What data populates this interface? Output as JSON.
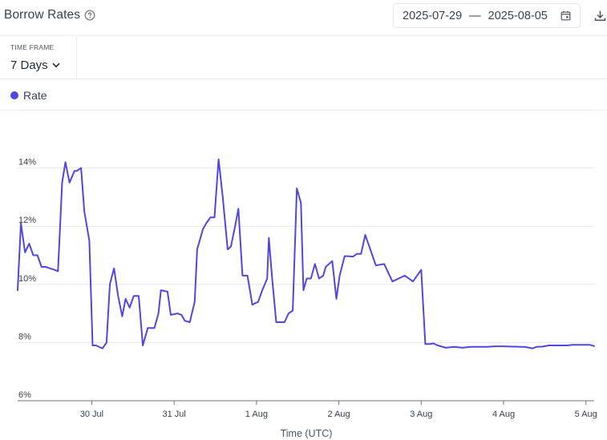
{
  "header": {
    "title": "Borrow Rates",
    "date_start": "2025-07-29",
    "date_separator": "—",
    "date_end": "2025-08-05"
  },
  "icons": {
    "help": "help-circle-icon",
    "calendar": "calendar-icon",
    "download": "download-icon",
    "chevron": "chevron-down-icon"
  },
  "timeframe": {
    "label": "TIME FRAME",
    "value": "7 Days"
  },
  "legend": {
    "label": "Rate",
    "color": "#5046e4"
  },
  "chart_data": {
    "type": "line",
    "xlabel": "Time (UTC)",
    "ylabel": "",
    "ylim": [
      6,
      16
    ],
    "xlim": [
      0,
      7
    ],
    "y_ticks": [
      6,
      8,
      10,
      12,
      14
    ],
    "y_tick_labels": [
      "6%",
      "8%",
      "10%",
      "12%",
      "14%"
    ],
    "x_ticks": [
      0.9,
      1.9,
      2.9,
      3.9,
      4.9,
      5.9,
      6.9
    ],
    "x_tick_labels": [
      "30 Jul",
      "31 Jul",
      "1 Aug",
      "2 Aug",
      "3 Aug",
      "4 Aug",
      "5 Aug"
    ],
    "grid": true,
    "legend_position": "top-left",
    "series": [
      {
        "name": "Rate",
        "color": "#5046e4",
        "x": [
          0,
          0.04,
          0.09,
          0.14,
          0.19,
          0.24,
          0.29,
          0.34,
          0.39,
          0.45,
          0.49,
          0.54,
          0.58,
          0.63,
          0.69,
          0.72,
          0.77,
          0.81,
          0.87,
          0.91,
          0.95,
          1.03,
          1.08,
          1.12,
          1.17,
          1.22,
          1.27,
          1.31,
          1.36,
          1.41,
          1.47,
          1.52,
          1.58,
          1.62,
          1.66,
          1.71,
          1.74,
          1.82,
          1.86,
          1.94,
          1.99,
          2.03,
          2.09,
          2.15,
          2.18,
          2.25,
          2.29,
          2.34,
          2.39,
          2.44,
          2.49,
          2.55,
          2.59,
          2.64,
          2.68,
          2.73,
          2.79,
          2.85,
          2.92,
          2.97,
          3.03,
          3.05,
          3.09,
          3.14,
          3.19,
          3.24,
          3.29,
          3.34,
          3.39,
          3.44,
          3.47,
          3.51,
          3.56,
          3.61,
          3.66,
          3.71,
          3.74,
          3.82,
          3.87,
          3.91,
          3.97,
          4.01,
          4.07,
          4.12,
          4.17,
          4.22,
          4.35,
          4.45,
          4.55,
          4.7,
          4.8,
          4.9,
          4.95,
          5.0,
          5.05,
          5.1,
          5.2,
          5.3,
          5.4,
          5.5,
          5.6,
          5.65,
          5.7,
          5.8,
          5.9,
          6.0,
          6.05,
          6.1,
          6.15,
          6.2,
          6.25,
          6.3,
          6.37,
          6.45,
          6.52,
          6.6,
          6.67,
          6.74,
          6.81,
          6.88,
          6.95,
          7.0
        ],
        "y": [
          9.8,
          12.1,
          11.1,
          11.4,
          11.0,
          11.0,
          10.6,
          10.6,
          10.55,
          10.5,
          10.45,
          13.5,
          14.2,
          13.5,
          13.9,
          13.9,
          14.0,
          12.5,
          11.5,
          7.9,
          7.9,
          7.8,
          8.0,
          10.0,
          10.55,
          9.6,
          8.9,
          9.5,
          9.2,
          9.6,
          9.6,
          7.9,
          8.5,
          8.5,
          8.5,
          9.0,
          9.8,
          9.75,
          8.95,
          9.0,
          8.95,
          8.75,
          8.7,
          9.4,
          11.2,
          11.9,
          12.1,
          12.3,
          12.3,
          14.3,
          13.0,
          11.2,
          11.3,
          12.0,
          12.6,
          10.3,
          10.3,
          9.3,
          9.4,
          9.8,
          10.2,
          11.6,
          10.2,
          8.7,
          8.7,
          8.7,
          9.0,
          9.1,
          13.3,
          12.8,
          9.8,
          10.2,
          10.2,
          10.7,
          10.2,
          10.3,
          10.6,
          10.8,
          9.5,
          10.3,
          10.97,
          10.97,
          10.95,
          11.05,
          11.05,
          11.7,
          10.65,
          10.7,
          10.1,
          10.3,
          10.1,
          10.5,
          7.95,
          7.95,
          7.97,
          7.9,
          7.82,
          7.85,
          7.82,
          7.85,
          7.85,
          7.85,
          7.85,
          7.87,
          7.87,
          7.86,
          7.86,
          7.85,
          7.85,
          7.83,
          7.8,
          7.85,
          7.86,
          7.9,
          7.9,
          7.9,
          7.9,
          7.92,
          7.92,
          7.92,
          7.92,
          7.88
        ]
      }
    ]
  }
}
